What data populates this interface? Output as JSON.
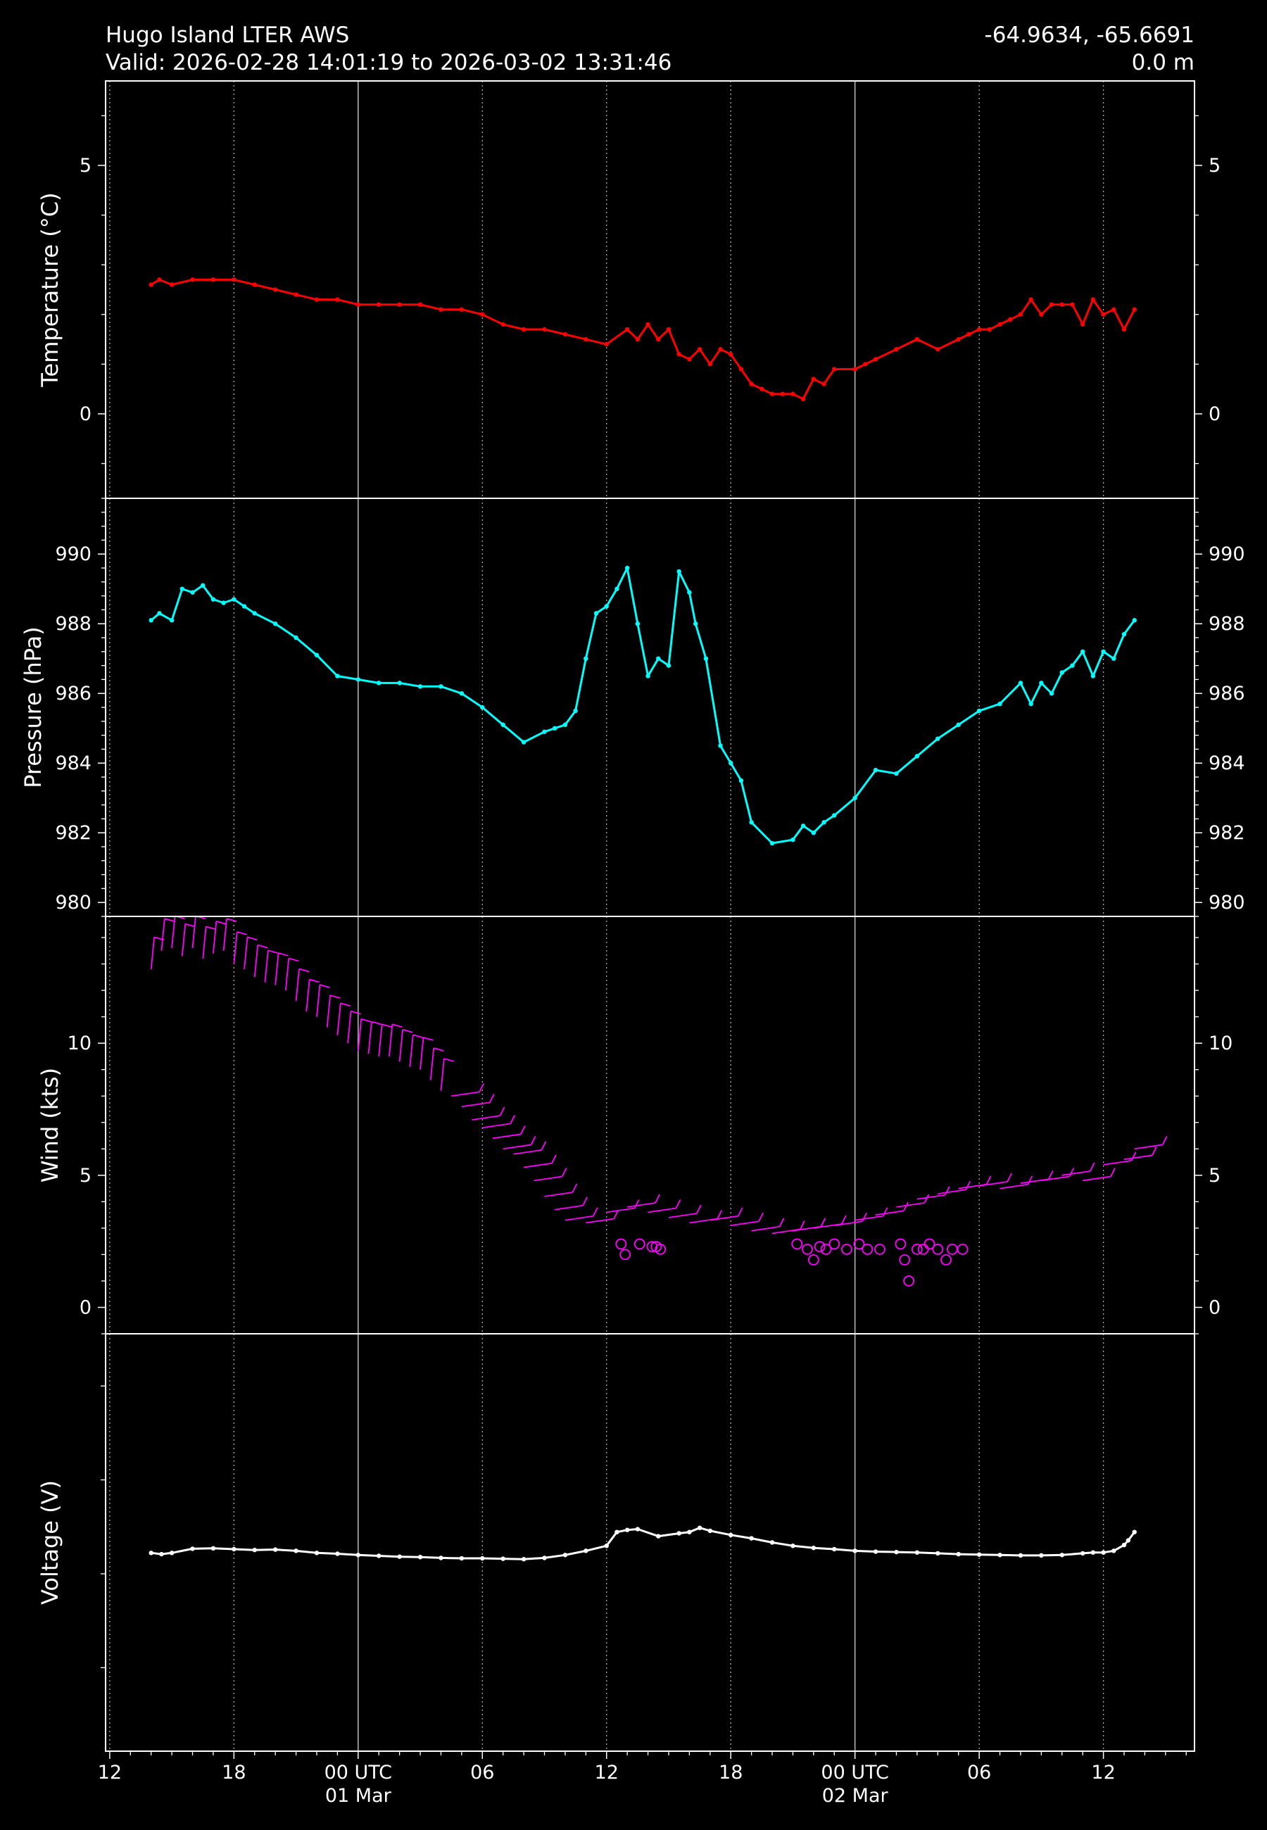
{
  "header": {
    "station": "Hugo Island LTER AWS",
    "valid": "Valid: 2026-02-28 14:01:19 to 2026-03-02 13:31:46",
    "coords": "-64.9634, -65.6691",
    "elevation": "0.0 m"
  },
  "colors": {
    "background": "#000000",
    "temperature": "#ff0000",
    "pressure": "#00ffff",
    "wind": "#ff00ff",
    "voltage": "#ffffff"
  },
  "chart_data": [
    {
      "type": "line",
      "ylabel": "Temperature ($^\\circ$C)",
      "ylabel_text": "Temperature (°C)",
      "ylim": [
        -1.7,
        6.7
      ],
      "yticks": [
        0,
        5
      ],
      "ytick_labels": [
        "0",
        "5"
      ],
      "color": "#ff0000",
      "x": [
        14.0,
        14.4,
        15.0,
        16.0,
        17.0,
        18.0,
        19.0,
        20.0,
        21.0,
        22.0,
        23.0,
        24.0,
        25.0,
        26.0,
        27.0,
        28.0,
        29.0,
        30.0,
        31.0,
        32.0,
        33.0,
        34.0,
        35.0,
        36.0,
        37.0,
        37.5,
        38.0,
        38.5,
        39.0,
        39.5,
        40.0,
        40.5,
        41.0,
        41.5,
        42.0,
        42.5,
        43.0,
        43.5,
        44.0,
        44.5,
        45.0,
        45.5,
        46.0,
        46.5,
        47.0,
        48.0,
        48.5,
        49.0,
        50.0,
        51.0,
        52.0,
        53.0,
        53.5,
        54.0,
        54.5,
        55.0,
        55.5,
        56.0,
        56.5,
        57.0,
        57.5,
        58.0,
        58.5,
        59.0,
        59.5,
        60.0,
        60.5,
        61.0,
        61.5
      ],
      "y": [
        2.6,
        2.7,
        2.6,
        2.7,
        2.7,
        2.7,
        2.6,
        2.5,
        2.4,
        2.3,
        2.3,
        2.2,
        2.2,
        2.2,
        2.2,
        2.1,
        2.1,
        2.0,
        1.8,
        1.7,
        1.7,
        1.6,
        1.5,
        1.4,
        1.7,
        1.5,
        1.8,
        1.5,
        1.7,
        1.2,
        1.1,
        1.3,
        1.0,
        1.3,
        1.2,
        0.9,
        0.6,
        0.5,
        0.4,
        0.4,
        0.4,
        0.3,
        0.7,
        0.6,
        0.9,
        0.9,
        1.0,
        1.1,
        1.3,
        1.5,
        1.3,
        1.5,
        1.6,
        1.7,
        1.7,
        1.8,
        1.9,
        2.0,
        2.3,
        2.0,
        2.2,
        2.2,
        2.2,
        1.8,
        2.3,
        2.0,
        2.1,
        1.7,
        2.1
      ]
    },
    {
      "type": "line",
      "ylabel": "Pressure (hPa)",
      "ylim": [
        979.6,
        991.6
      ],
      "yticks": [
        980,
        982,
        984,
        986,
        988,
        990
      ],
      "ytick_labels": [
        "980",
        "982",
        "984",
        "986",
        "988",
        "990"
      ],
      "color": "#00ffff",
      "x": [
        14.0,
        14.4,
        15.0,
        15.5,
        16.0,
        16.5,
        17.0,
        17.5,
        18.0,
        18.5,
        19.0,
        20.0,
        21.0,
        22.0,
        23.0,
        24.0,
        25.0,
        26.0,
        27.0,
        28.0,
        29.0,
        30.0,
        31.0,
        32.0,
        33.0,
        33.5,
        34.0,
        34.5,
        35.0,
        35.5,
        36.0,
        36.5,
        37.0,
        37.5,
        38.0,
        38.5,
        39.0,
        39.5,
        40.0,
        40.3,
        40.8,
        41.5,
        42.0,
        42.5,
        43.0,
        44.0,
        45.0,
        45.5,
        46.0,
        46.5,
        47.0,
        48.0,
        49.0,
        50.0,
        51.0,
        52.0,
        53.0,
        54.0,
        55.0,
        56.0,
        56.5,
        57.0,
        57.5,
        58.0,
        58.5,
        59.0,
        59.5,
        60.0,
        60.5,
        61.0,
        61.5
      ],
      "y": [
        988.1,
        988.3,
        988.1,
        989.0,
        988.9,
        989.1,
        988.7,
        988.6,
        988.7,
        988.5,
        988.3,
        988.0,
        987.6,
        987.1,
        986.5,
        986.4,
        986.3,
        986.3,
        986.2,
        986.2,
        986.0,
        985.6,
        985.1,
        984.6,
        984.9,
        985.0,
        985.1,
        985.5,
        987.0,
        988.3,
        988.5,
        989.0,
        989.6,
        988.0,
        986.5,
        987.0,
        986.8,
        989.5,
        988.9,
        988.0,
        987.0,
        984.5,
        984.0,
        983.5,
        982.3,
        981.7,
        981.8,
        982.2,
        982.0,
        982.3,
        982.5,
        983.0,
        983.8,
        983.7,
        984.2,
        984.7,
        985.1,
        985.5,
        985.7,
        986.3,
        985.7,
        986.3,
        986.0,
        986.6,
        986.8,
        987.2,
        986.5,
        987.2,
        987.0,
        987.7,
        988.1
      ]
    },
    {
      "type": "scatter",
      "ylabel": "Wind (kts)",
      "ylim": [
        -1.0,
        14.8
      ],
      "yticks": [
        0,
        5,
        10
      ],
      "ytick_labels": [
        "0",
        "5",
        "10"
      ],
      "color": "#ff00ff",
      "barbs": {
        "x": [
          14.0,
          14.5,
          15.0,
          15.5,
          16.0,
          16.5,
          17.0,
          17.5,
          18.0,
          18.5,
          19.0,
          19.5,
          20.0,
          20.5,
          21.0,
          21.5,
          22.0,
          22.5,
          23.0,
          23.5,
          24.0,
          24.5,
          25.0,
          25.5,
          26.0,
          26.5,
          27.0,
          27.5,
          28.0,
          28.5,
          29.0,
          29.5,
          30.0,
          30.5,
          31.0,
          31.5,
          32.0,
          32.5,
          33.0,
          33.5,
          34.0,
          35.0,
          36.0,
          37.0,
          38.0,
          39.0,
          40.0,
          41.0,
          42.0,
          43.0,
          44.0,
          45.0,
          46.0,
          47.0,
          48.0,
          49.0,
          50.0,
          51.0,
          52.0,
          53.0,
          54.0,
          55.0,
          56.0,
          57.0,
          58.0,
          59.0,
          60.0,
          61.0,
          61.5
        ],
        "y": [
          12.8,
          13.5,
          13.6,
          13.3,
          13.6,
          13.2,
          13.4,
          13.5,
          13.0,
          12.8,
          12.5,
          12.3,
          12.2,
          12.0,
          11.6,
          11.2,
          11.0,
          10.6,
          10.3,
          10.0,
          9.7,
          9.6,
          9.5,
          9.5,
          9.3,
          9.1,
          9.0,
          8.6,
          8.2,
          8.0,
          7.6,
          7.1,
          6.8,
          6.4,
          6.0,
          5.8,
          5.3,
          4.8,
          4.2,
          3.7,
          3.3,
          3.2,
          3.6,
          3.8,
          3.6,
          3.4,
          3.2,
          3.3,
          3.1,
          2.9,
          2.8,
          2.9,
          3.0,
          3.1,
          3.3,
          3.5,
          3.8,
          4.1,
          4.3,
          4.5,
          4.6,
          4.5,
          4.7,
          4.8,
          5.0,
          4.8,
          5.4,
          5.6,
          6.0
        ]
      },
      "calm": {
        "x": [
          36.7,
          36.9,
          37.6,
          38.2,
          38.4,
          38.6,
          45.2,
          45.7,
          46.0,
          46.3,
          46.6,
          47.0,
          47.6,
          48.2,
          48.6,
          49.2,
          50.2,
          50.4,
          50.6,
          51.0,
          51.3,
          51.6,
          52.0,
          52.4,
          52.7,
          53.2
        ],
        "y": [
          2.4,
          2.0,
          2.4,
          2.3,
          2.3,
          2.2,
          2.4,
          2.2,
          1.8,
          2.3,
          2.2,
          2.4,
          2.2,
          2.4,
          2.2,
          2.2,
          2.4,
          1.8,
          1.0,
          2.2,
          2.2,
          2.4,
          2.2,
          1.8,
          2.2,
          2.2
        ]
      }
    },
    {
      "type": "line",
      "ylabel": "Voltage (V)",
      "ylim": [
        0.0,
        1.0
      ],
      "yticks": [],
      "ytick_labels": [],
      "color": "#ffffff",
      "x": [
        14.0,
        14.5,
        15.0,
        16.0,
        17.0,
        18.0,
        19.0,
        20.0,
        21.0,
        22.0,
        23.0,
        24.0,
        25.0,
        26.0,
        27.0,
        28.0,
        29.0,
        30.0,
        31.0,
        32.0,
        33.0,
        34.0,
        35.0,
        36.0,
        36.5,
        37.0,
        37.5,
        38.5,
        39.5,
        40.0,
        40.5,
        41.0,
        42.0,
        43.0,
        44.0,
        45.0,
        46.0,
        47.0,
        48.0,
        49.0,
        50.0,
        51.0,
        52.0,
        53.0,
        54.0,
        55.0,
        56.0,
        57.0,
        58.0,
        59.0,
        59.5,
        60.0,
        60.5,
        61.0,
        61.2,
        61.5
      ],
      "y": [
        0.475,
        0.472,
        0.475,
        0.485,
        0.486,
        0.484,
        0.482,
        0.483,
        0.48,
        0.475,
        0.473,
        0.47,
        0.468,
        0.466,
        0.465,
        0.463,
        0.462,
        0.462,
        0.461,
        0.46,
        0.463,
        0.47,
        0.48,
        0.492,
        0.525,
        0.53,
        0.532,
        0.515,
        0.522,
        0.525,
        0.535,
        0.528,
        0.518,
        0.51,
        0.5,
        0.492,
        0.487,
        0.484,
        0.48,
        0.478,
        0.477,
        0.476,
        0.474,
        0.472,
        0.471,
        0.47,
        0.469,
        0.469,
        0.47,
        0.474,
        0.476,
        0.476,
        0.48,
        0.494,
        0.505,
        0.525
      ]
    }
  ],
  "x_axis": {
    "unit": "hours since 2026-02-28 00:00 UTC",
    "xlim": [
      11.8,
      64.4
    ],
    "major_ticks": [
      12,
      18,
      24,
      30,
      36,
      42,
      48,
      54,
      60
    ],
    "major_tick_labels": [
      "12",
      "18",
      "00 UTC\n01 Mar",
      "06",
      "12",
      "18",
      "00 UTC\n02 Mar",
      "06",
      "12"
    ],
    "day_boundaries": [
      24,
      48
    ]
  }
}
